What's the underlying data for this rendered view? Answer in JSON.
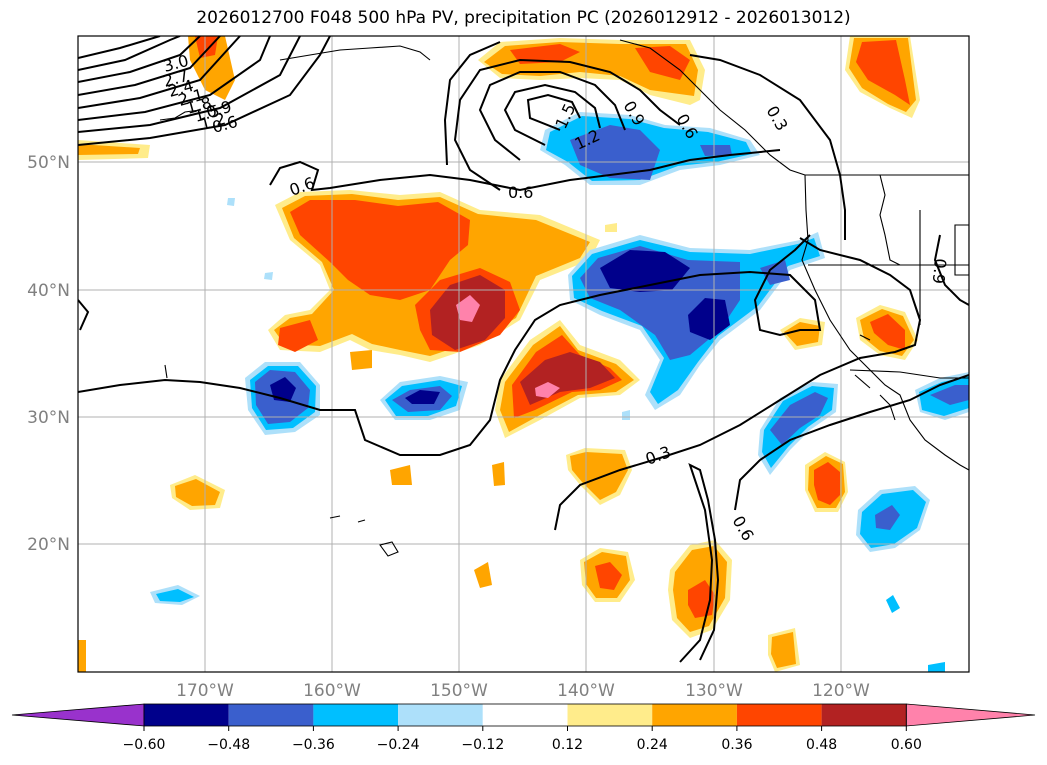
{
  "title": "2026012700 F048 500 hPa PV, precipitation PC (2026012912 - 2026013012)",
  "lat_labels": [
    "50°N",
    "40°N",
    "30°N",
    "20°N"
  ],
  "lon_labels": [
    "170°W",
    "160°W",
    "150°W",
    "140°W",
    "130°W",
    "120°W"
  ],
  "colorbar": {
    "colors": [
      "#9932CC",
      "#00008B",
      "#3A5FCD",
      "#00BFFF",
      "#ADE0FA",
      "#FFFFFF",
      "#FFEC8B",
      "#FFA500",
      "#FF4500",
      "#B22222",
      "#FF82AB"
    ],
    "tick_labels": [
      "−0.60",
      "−0.48",
      "−0.36",
      "−0.24",
      "−0.12",
      "0.12",
      "0.24",
      "0.36",
      "0.48",
      "0.60"
    ]
  },
  "contour_labels": [
    "3.0",
    "2.7",
    "2.4",
    "2.1",
    "1.8",
    "1.5",
    "1.2",
    "0.9",
    "0.6",
    "0.6",
    "0.6",
    "0.6",
    "1.5",
    "1.2",
    "0.9",
    "0.3",
    "0.9",
    "0.3",
    "0.6"
  ],
  "colors": {
    "line": "#000000",
    "grid": "#b0b0b0",
    "axis_label": "#808080"
  }
}
